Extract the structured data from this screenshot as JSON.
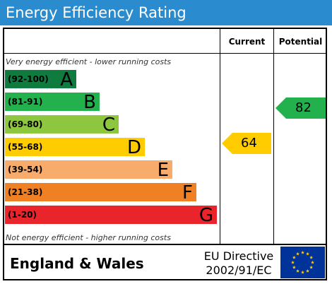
{
  "title": "Energy Efficiency Rating",
  "columns": {
    "current": "Current",
    "potential": "Potential"
  },
  "notes": {
    "top": "Very energy efficient - lower running costs",
    "bottom": "Not energy efficient - higher running costs"
  },
  "bands": [
    {
      "range": "(92-100)",
      "letter": "A",
      "color": "#0f7b3e"
    },
    {
      "range": "(81-91)",
      "letter": "B",
      "color": "#22b14c"
    },
    {
      "range": "(69-80)",
      "letter": "C",
      "color": "#8dc63f"
    },
    {
      "range": "(55-68)",
      "letter": "D",
      "color": "#ffcc00"
    },
    {
      "range": "(39-54)",
      "letter": "E",
      "color": "#f7ac6b"
    },
    {
      "range": "(21-38)",
      "letter": "F",
      "color": "#ef8023"
    },
    {
      "range": "(1-20)",
      "letter": "G",
      "color": "#e9242a"
    }
  ],
  "current": {
    "value": "64",
    "band": "D",
    "color": "#ffcc00"
  },
  "potential": {
    "value": "82",
    "band": "B",
    "color": "#22b14c"
  },
  "footer": {
    "country": "England & Wales",
    "directive_line1": "EU Directive",
    "directive_line2": "2002/91/EC"
  },
  "flag": {
    "background": "#003399",
    "stars": "#ffcc00"
  }
}
